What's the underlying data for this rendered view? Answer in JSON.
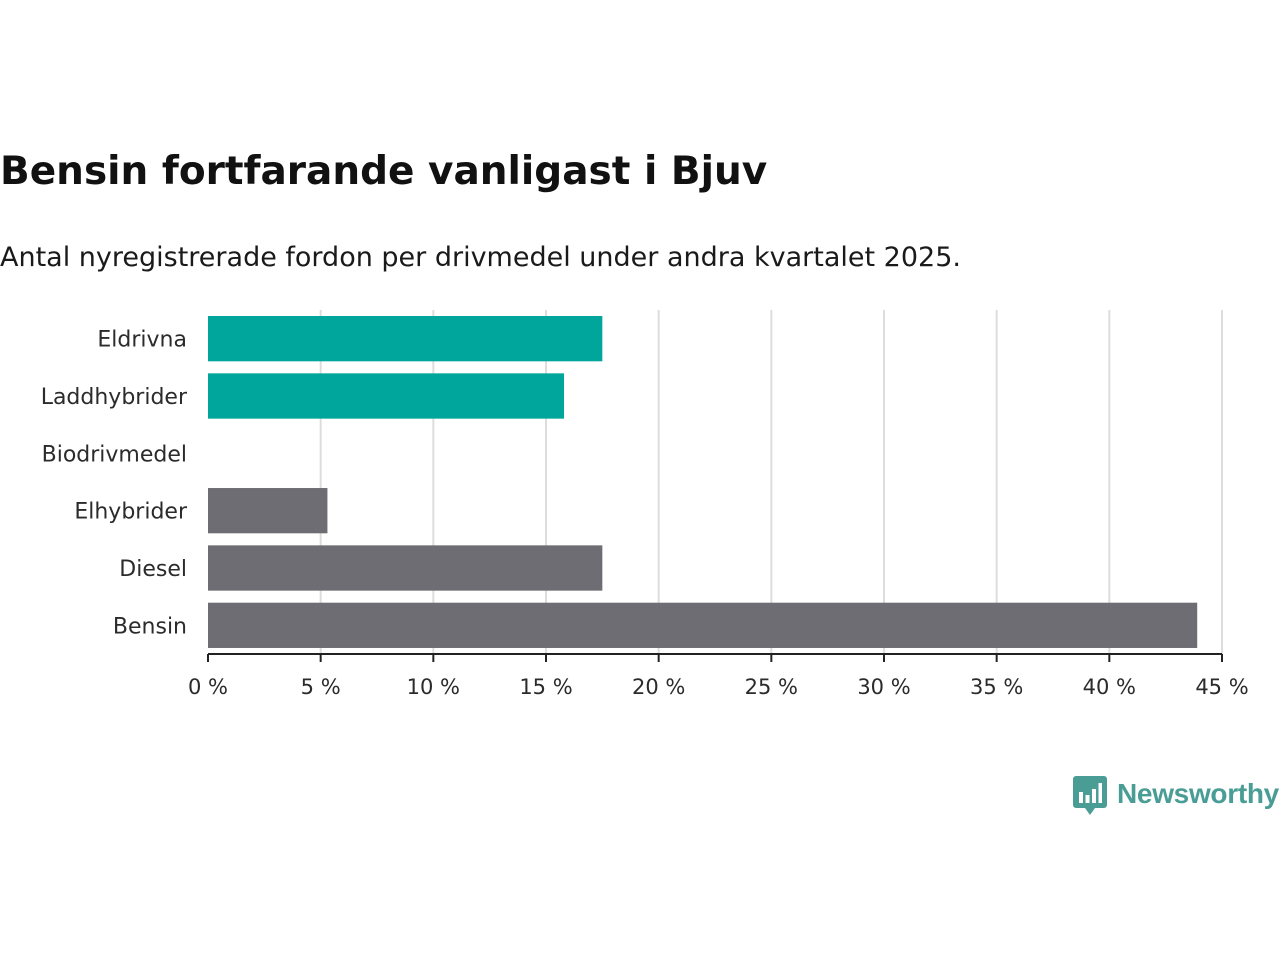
{
  "title": "Bensin fortfarande vanligast i Bjuv",
  "subtitle": "Antal nyregistrerade fordon per drivmedel under andra kvartalet 2025.",
  "brand": {
    "name": "Newsworthy",
    "color": "#4a9d95",
    "icon": "bar-chart-speech-bubble-icon"
  },
  "colors": {
    "highlight": "#00a59b",
    "default": "#6e6d73",
    "grid": "#dddddd",
    "axis": "#222222"
  },
  "chart_data": {
    "type": "bar",
    "orientation": "horizontal",
    "categories": [
      "Eldrivna",
      "Laddhybrider",
      "Biodrivmedel",
      "Elhybrider",
      "Diesel",
      "Bensin"
    ],
    "values": [
      17.5,
      15.8,
      0,
      5.3,
      17.5,
      43.9
    ],
    "highlight": [
      true,
      true,
      false,
      false,
      false,
      false
    ],
    "xlim": [
      0,
      45
    ],
    "xticks": [
      0,
      5,
      10,
      15,
      20,
      25,
      30,
      35,
      40,
      45
    ],
    "tick_suffix": " %",
    "grid": true
  }
}
